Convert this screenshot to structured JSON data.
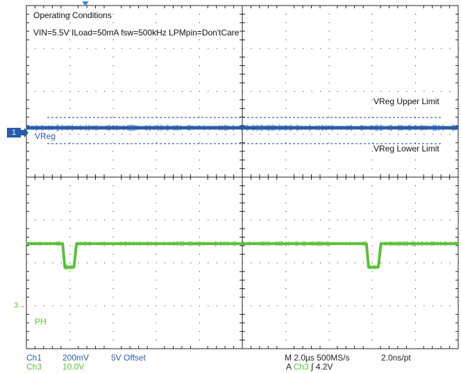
{
  "conditions": {
    "title": "Operating Conditions",
    "params": "VIN=5.5V ILoad=50mA fsw=500kHz LPMpin=Don'tCare"
  },
  "labels": {
    "upper_limit": "VReg Upper Limit",
    "lower_limit": "VReg Lower Limit",
    "ch1_trace": "VReg",
    "ch3_trace": "PH",
    "ch1_marker": "1",
    "ch3_marker": "3"
  },
  "bottom": {
    "ch1_name": "Ch1",
    "ch1_scale": "200mV",
    "ch1_offset": "5V Offset",
    "ch3_name": "Ch3",
    "ch3_scale": "10.0V",
    "timebase": "M 2.0µs 500MS/s",
    "resolution": "2.0ns/pt",
    "trigger_prefix": "A",
    "trigger_channel": "Ch3",
    "trigger_slope": "∫",
    "trigger_level": "4.2V"
  },
  "colors": {
    "ch1": "#2a5caa",
    "ch3": "#5cbf3a",
    "grid": "#222222",
    "text": "#111111"
  },
  "chart_data": {
    "type": "line",
    "title": "Operating Conditions",
    "grid": true,
    "x_divisions": 10,
    "y_divisions": 8,
    "x_unit_per_div_us": 2.0,
    "xlim_us": [
      0,
      20
    ],
    "series": [
      {
        "name": "VReg",
        "channel": "Ch1",
        "scale_per_div": "200mV",
        "ground_div": 1.15,
        "x_us": [
          0,
          20
        ],
        "y_div": [
          0,
          0
        ]
      },
      {
        "name": "PH",
        "channel": "Ch3",
        "scale_per_div": "10.0V",
        "ground_div": -2.1,
        "x_us": [
          0,
          1.68,
          1.78,
          2.2,
          2.32,
          15.75,
          15.85,
          16.3,
          16.42,
          20
        ],
        "y_div": [
          0.55,
          0.55,
          0,
          0,
          0.55,
          0.55,
          0,
          0,
          0.55,
          0.55
        ]
      }
    ],
    "limits": [
      {
        "name": "VReg Upper Limit",
        "y_div": 0.24
      },
      {
        "name": "VReg Lower Limit",
        "y_div": -0.37
      }
    ]
  }
}
